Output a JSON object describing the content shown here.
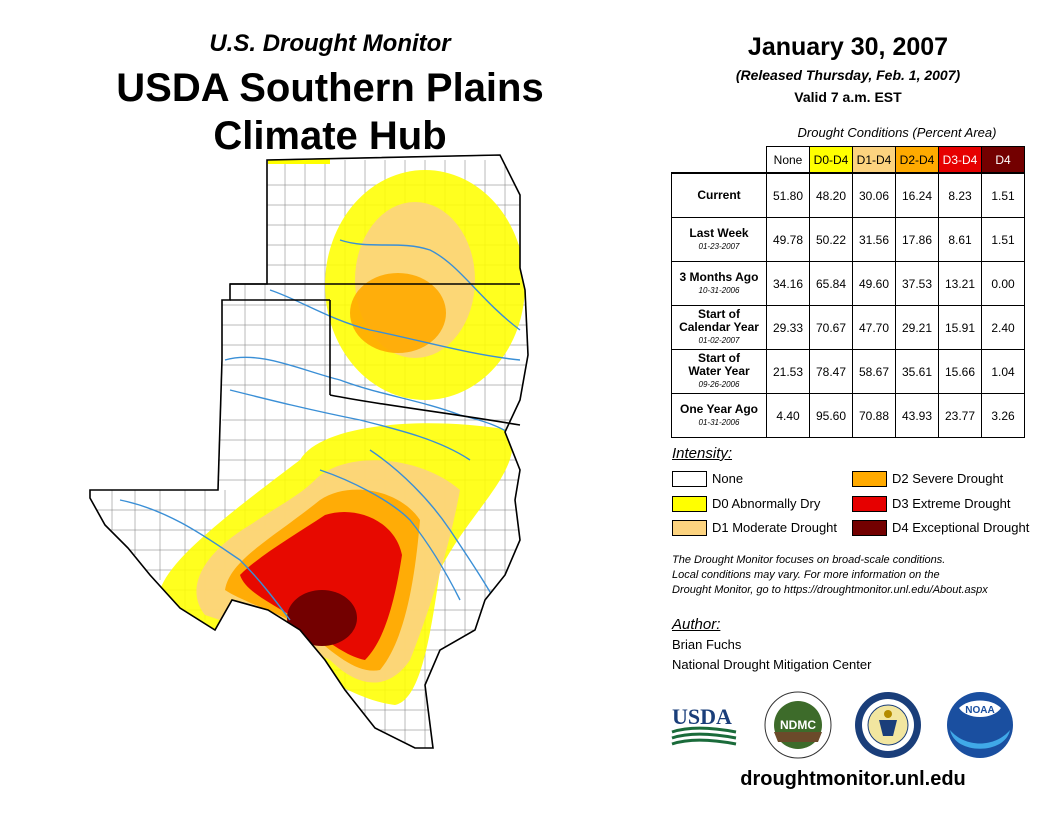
{
  "header": {
    "subtitle": "U.S. Drought Monitor",
    "title_line1": "USDA Southern Plains",
    "title_line2": "Climate Hub"
  },
  "date_block": {
    "date": "January 30, 2007",
    "released": "(Released Thursday, Feb. 1, 2007)",
    "valid": "Valid 7 a.m. EST"
  },
  "conditions": {
    "caption": "Drought Conditions (Percent Area)",
    "columns": [
      "None",
      "D0-D4",
      "D1-D4",
      "D2-D4",
      "D3-D4",
      "D4"
    ],
    "column_colors": [
      "#ffffff",
      "#ffff00",
      "#fcd37f",
      "#ffaa00",
      "#e60000",
      "#730000"
    ],
    "column_text_colors": [
      "#000000",
      "#000000",
      "#000000",
      "#000000",
      "#ffffff",
      "#ffffff"
    ],
    "rows": [
      {
        "label": "Current",
        "label2": "",
        "date": "",
        "values": [
          "51.80",
          "48.20",
          "30.06",
          "16.24",
          "8.23",
          "1.51"
        ]
      },
      {
        "label": "Last Week",
        "label2": "",
        "date": "01-23-2007",
        "values": [
          "49.78",
          "50.22",
          "31.56",
          "17.86",
          "8.61",
          "1.51"
        ]
      },
      {
        "label": "3 Months Ago",
        "label2": "",
        "date": "10-31-2006",
        "values": [
          "34.16",
          "65.84",
          "49.60",
          "37.53",
          "13.21",
          "0.00"
        ]
      },
      {
        "label": "Start of",
        "label2": "Calendar Year",
        "date": "01-02-2007",
        "values": [
          "29.33",
          "70.67",
          "47.70",
          "29.21",
          "15.91",
          "2.40"
        ]
      },
      {
        "label": "Start of",
        "label2": "Water Year",
        "date": "09-26-2006",
        "values": [
          "21.53",
          "78.47",
          "58.67",
          "35.61",
          "15.66",
          "1.04"
        ]
      },
      {
        "label": "One Year Ago",
        "label2": "",
        "date": "01-31-2006",
        "values": [
          "4.40",
          "95.60",
          "70.88",
          "43.93",
          "23.77",
          "3.26"
        ]
      }
    ]
  },
  "legend": {
    "title": "Intensity:",
    "items": [
      {
        "label": "None",
        "color": "#ffffff"
      },
      {
        "label": "D0 Abnormally Dry",
        "color": "#ffff00"
      },
      {
        "label": "D1 Moderate Drought",
        "color": "#fcd37f"
      },
      {
        "label": "D2 Severe Drought",
        "color": "#ffaa00"
      },
      {
        "label": "D3 Extreme Drought",
        "color": "#e60000"
      },
      {
        "label": "D4 Exceptional Drought",
        "color": "#730000"
      }
    ]
  },
  "note": {
    "line1": "The Drought Monitor focuses on broad-scale conditions.",
    "line2": "Local conditions may vary. For more information on the",
    "line3": "Drought Monitor, go to https://droughtmonitor.unl.edu/About.aspx"
  },
  "author": {
    "label": "Author:",
    "name": "Brian Fuchs",
    "org": "National Drought Mitigation Center"
  },
  "logos": {
    "usda": "USDA",
    "ndmc": "NDMC",
    "noaa": "NOAA"
  },
  "website": "droughtmonitor.unl.edu"
}
